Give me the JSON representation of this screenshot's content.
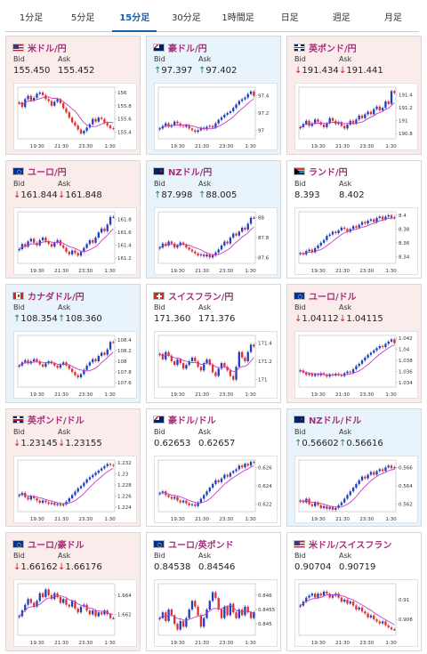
{
  "tabs": [
    "1分足",
    "5分足",
    "15分足",
    "30分足",
    "1時間足",
    "日足",
    "週足",
    "月足"
  ],
  "active_tab": "15分足",
  "labels": {
    "bid": "Bid",
    "ask": "Ask"
  },
  "x_ticks": [
    "19:30",
    "21:30",
    "23:30",
    "1:30"
  ],
  "colors": {
    "up_candle": "#1f3fbf",
    "down_candle": "#e03030",
    "ma_line": "#c43cc4",
    "tab_active": "#1a5ea8",
    "pair_text": "#a6307a"
  },
  "cards": [
    {
      "pair": "米ドル/円",
      "flag": "us-flag-icon",
      "dir": "dn",
      "bid_arrow": "",
      "ask_arrow": "",
      "bid": "155.450",
      "ask": "155.452",
      "chart_data": {
        "type": "candlestick",
        "y_ticks": [
          "156",
          "155.8",
          "155.6",
          "155.4"
        ],
        "ylim": [
          155.3,
          156.08
        ],
        "closes": [
          155.85,
          155.78,
          155.9,
          155.95,
          155.88,
          155.92,
          155.98,
          156.0,
          155.96,
          155.9,
          155.87,
          155.8,
          155.86,
          155.9,
          155.84,
          155.76,
          155.7,
          155.62,
          155.55,
          155.5,
          155.44,
          155.38,
          155.42,
          155.47,
          155.52,
          155.6,
          155.56,
          155.62,
          155.6,
          155.54,
          155.5,
          155.46,
          155.45
        ]
      }
    },
    {
      "pair": "豪ドル/円",
      "flag": "au-flag-icon",
      "dir": "up",
      "bid_arrow": "↑",
      "ask_arrow": "↑",
      "bid": "97.397",
      "ask": "97.402",
      "chart_data": {
        "type": "candlestick",
        "y_ticks": [
          "97.4",
          "97.2",
          "97"
        ],
        "ylim": [
          96.9,
          97.5
        ],
        "closes": [
          97.02,
          97.05,
          97.08,
          97.04,
          97.06,
          97.1,
          97.08,
          97.05,
          97.04,
          97.06,
          97.02,
          97.0,
          96.98,
          97.0,
          97.03,
          97.01,
          97.04,
          97.05,
          97.03,
          97.08,
          97.12,
          97.15,
          97.18,
          97.2,
          97.22,
          97.26,
          97.3,
          97.34,
          97.36,
          97.38,
          97.42,
          97.45,
          97.4
        ]
      }
    },
    {
      "pair": "英ポンド/円",
      "flag": "gb-flag-icon",
      "dir": "dn",
      "bid_arrow": "↓",
      "ask_arrow": "↓",
      "bid": "191.434",
      "ask": "191.441",
      "chart_data": {
        "type": "candlestick",
        "y_ticks": [
          "191.4",
          "191.2",
          "191",
          "190.8"
        ],
        "ylim": [
          190.72,
          191.52
        ],
        "closes": [
          190.9,
          190.95,
          191.0,
          190.92,
          190.96,
          191.02,
          190.98,
          190.94,
          190.9,
          190.96,
          191.04,
          191.0,
          190.95,
          190.98,
          190.92,
          190.88,
          190.94,
          191.0,
          190.96,
          191.02,
          191.08,
          191.04,
          191.1,
          191.14,
          191.1,
          191.18,
          191.22,
          191.16,
          191.2,
          191.3,
          191.26,
          191.46,
          191.43
        ]
      }
    },
    {
      "pair": "ユーロ/円",
      "flag": "eu-flag-icon",
      "dir": "dn",
      "bid_arrow": "↓",
      "ask_arrow": "↓",
      "bid": "161.844",
      "ask": "161.848",
      "chart_data": {
        "type": "candlestick",
        "y_ticks": [
          "161.8",
          "161.6",
          "161.4",
          "161.2"
        ],
        "ylim": [
          161.12,
          161.92
        ],
        "closes": [
          161.34,
          161.42,
          161.38,
          161.46,
          161.5,
          161.44,
          161.4,
          161.48,
          161.52,
          161.46,
          161.42,
          161.38,
          161.44,
          161.48,
          161.4,
          161.36,
          161.3,
          161.26,
          161.32,
          161.28,
          161.24,
          161.3,
          161.36,
          161.42,
          161.48,
          161.44,
          161.52,
          161.6,
          161.66,
          161.62,
          161.72,
          161.84,
          161.84
        ]
      }
    },
    {
      "pair": "NZドル/円",
      "flag": "nz-flag-icon",
      "dir": "up",
      "bid_arrow": "↑",
      "ask_arrow": "↑",
      "bid": "87.998",
      "ask": "88.005",
      "chart_data": {
        "type": "candlestick",
        "y_ticks": [
          "88",
          "87.8",
          "87.6"
        ],
        "ylim": [
          87.54,
          88.06
        ],
        "closes": [
          87.7,
          87.74,
          87.72,
          87.76,
          87.74,
          87.7,
          87.72,
          87.75,
          87.73,
          87.7,
          87.68,
          87.66,
          87.64,
          87.62,
          87.63,
          87.61,
          87.63,
          87.6,
          87.62,
          87.65,
          87.68,
          87.72,
          87.76,
          87.74,
          87.8,
          87.84,
          87.82,
          87.86,
          87.9,
          87.88,
          87.94,
          88.0,
          88.0
        ]
      }
    },
    {
      "pair": "ランド/円",
      "flag": "za-flag-icon",
      "dir": "nt",
      "bid_arrow": "",
      "ask_arrow": "",
      "bid": "8.393",
      "ask": "8.402",
      "chart_data": {
        "type": "candlestick",
        "y_ticks": [
          "8.4",
          "8.38",
          "8.36",
          "8.34"
        ],
        "ylim": [
          8.33,
          8.405
        ],
        "closes": [
          8.345,
          8.343,
          8.348,
          8.35,
          8.346,
          8.352,
          8.356,
          8.36,
          8.364,
          8.37,
          8.372,
          8.376,
          8.374,
          8.378,
          8.382,
          8.38,
          8.376,
          8.38,
          8.384,
          8.382,
          8.386,
          8.39,
          8.388,
          8.392,
          8.394,
          8.39,
          8.396,
          8.398,
          8.394,
          8.398,
          8.4,
          8.396,
          8.397
        ]
      }
    },
    {
      "pair": "カナダドル/円",
      "flag": "ca-flag-icon",
      "dir": "up",
      "bid_arrow": "↑",
      "ask_arrow": "↑",
      "bid": "108.354",
      "ask": "108.360",
      "chart_data": {
        "type": "candlestick",
        "y_ticks": [
          "108.4",
          "108.2",
          "108",
          "107.8",
          "107.6"
        ],
        "ylim": [
          107.52,
          108.48
        ],
        "closes": [
          107.92,
          107.98,
          108.02,
          107.96,
          108.0,
          108.04,
          108.0,
          107.94,
          107.9,
          107.96,
          108.0,
          107.96,
          107.92,
          107.88,
          107.94,
          107.98,
          107.92,
          107.86,
          107.8,
          107.74,
          107.7,
          107.76,
          107.84,
          107.92,
          107.98,
          108.04,
          108.0,
          108.1,
          108.16,
          108.12,
          108.22,
          108.36,
          108.35
        ]
      }
    },
    {
      "pair": "スイスフラン/円",
      "flag": "ch-flag-icon",
      "dir": "nt",
      "bid_arrow": "",
      "ask_arrow": "",
      "bid": "171.360",
      "ask": "171.376",
      "chart_data": {
        "type": "candlestick",
        "y_ticks": [
          "171.4",
          "171.2",
          "171"
        ],
        "ylim": [
          170.92,
          171.48
        ],
        "closes": [
          171.28,
          171.22,
          171.3,
          171.26,
          171.2,
          171.16,
          171.22,
          171.18,
          171.12,
          171.16,
          171.2,
          171.24,
          171.2,
          171.14,
          171.1,
          171.18,
          171.22,
          171.16,
          171.08,
          171.04,
          171.12,
          171.18,
          171.14,
          171.1,
          171.04,
          171.0,
          171.14,
          171.3,
          171.24,
          171.2,
          171.3,
          171.38,
          171.36
        ]
      }
    },
    {
      "pair": "ユーロ/ドル",
      "flag": "eu-us-flag-icon",
      "dir": "dn",
      "bid_arrow": "↓",
      "ask_arrow": "↓",
      "bid": "1.04112",
      "ask": "1.04115",
      "chart_data": {
        "type": "candlestick",
        "y_ticks": [
          "1.042",
          "1.04",
          "1.038",
          "1.036",
          "1.034"
        ],
        "ylim": [
          1.0332,
          1.0425
        ],
        "closes": [
          1.0362,
          1.0358,
          1.0354,
          1.0356,
          1.0352,
          1.0355,
          1.0353,
          1.0357,
          1.0354,
          1.0351,
          1.0355,
          1.0353,
          1.0356,
          1.0354,
          1.0352,
          1.0357,
          1.036,
          1.0358,
          1.0364,
          1.037,
          1.0374,
          1.038,
          1.0385,
          1.039,
          1.0394,
          1.0398,
          1.0402,
          1.0406,
          1.0404,
          1.041,
          1.0414,
          1.0418,
          1.0411
        ]
      }
    },
    {
      "pair": "英ポンド/ドル",
      "flag": "gb-us-flag-icon",
      "dir": "dn",
      "bid_arrow": "↓",
      "ask_arrow": "↓",
      "bid": "1.23145",
      "ask": "1.23155",
      "chart_data": {
        "type": "candlestick",
        "y_ticks": [
          "1.232",
          "1.23",
          "1.228",
          "1.226",
          "1.224"
        ],
        "ylim": [
          1.2232,
          1.2325
        ],
        "closes": [
          1.2262,
          1.2266,
          1.2258,
          1.2254,
          1.226,
          1.2256,
          1.2252,
          1.2248,
          1.2252,
          1.2249,
          1.2246,
          1.2248,
          1.2244,
          1.2246,
          1.2243,
          1.2245,
          1.225,
          1.2256,
          1.2262,
          1.2268,
          1.2274,
          1.2278,
          1.2284,
          1.229,
          1.2294,
          1.2298,
          1.2302,
          1.2306,
          1.231,
          1.2314,
          1.2318,
          1.2316,
          1.2315
        ]
      }
    },
    {
      "pair": "豪ドル/ドル",
      "flag": "au-us-flag-icon",
      "dir": "nt",
      "bid_arrow": "",
      "ask_arrow": "",
      "bid": "0.62653",
      "ask": "0.62657",
      "chart_data": {
        "type": "candlestick",
        "y_ticks": [
          "0.626",
          "0.624",
          "0.622"
        ],
        "ylim": [
          0.6212,
          0.6268
        ],
        "closes": [
          0.6232,
          0.6234,
          0.623,
          0.6228,
          0.6226,
          0.6228,
          0.6224,
          0.6222,
          0.6224,
          0.6221,
          0.6219,
          0.622,
          0.6218,
          0.6222,
          0.6226,
          0.623,
          0.6234,
          0.6238,
          0.6242,
          0.6246,
          0.6244,
          0.6248,
          0.6252,
          0.625,
          0.6254,
          0.6256,
          0.6258,
          0.6262,
          0.626,
          0.6264,
          0.6262,
          0.6266,
          0.6265
        ]
      }
    },
    {
      "pair": "NZドル/ドル",
      "flag": "nz-us-flag-icon",
      "dir": "up",
      "bid_arrow": "↑",
      "ask_arrow": "↑",
      "bid": "0.56602",
      "ask": "0.56616",
      "chart_data": {
        "type": "candlestick",
        "y_ticks": [
          "0.566",
          "0.564",
          "0.562"
        ],
        "ylim": [
          0.5612,
          0.5668
        ],
        "closes": [
          0.5624,
          0.5622,
          0.5626,
          0.562,
          0.5618,
          0.5622,
          0.5619,
          0.5616,
          0.5618,
          0.5615,
          0.5617,
          0.5614,
          0.5616,
          0.5619,
          0.5622,
          0.5626,
          0.563,
          0.5634,
          0.5638,
          0.5642,
          0.5646,
          0.565,
          0.5648,
          0.5652,
          0.5655,
          0.5652,
          0.5656,
          0.5658,
          0.5656,
          0.566,
          0.5662,
          0.5659,
          0.566
        ]
      }
    },
    {
      "pair": "ユーロ/豪ドル",
      "flag": "eu-au-flag-icon",
      "dir": "dn",
      "bid_arrow": "↓",
      "ask_arrow": "↓",
      "bid": "1.66162",
      "ask": "1.66176",
      "chart_data": {
        "type": "candlestick",
        "y_ticks": [
          "1.664",
          "1.662"
        ],
        "ylim": [
          1.6598,
          1.6652
        ],
        "closes": [
          1.6618,
          1.6624,
          1.663,
          1.6636,
          1.6632,
          1.6628,
          1.6634,
          1.6642,
          1.6638,
          1.6646,
          1.664,
          1.6636,
          1.6642,
          1.6638,
          1.6632,
          1.6636,
          1.663,
          1.6628,
          1.6634,
          1.6626,
          1.6622,
          1.6628,
          1.663,
          1.6624,
          1.662,
          1.6624,
          1.6618,
          1.6622,
          1.662,
          1.6624,
          1.662,
          1.6616,
          1.6616
        ]
      }
    },
    {
      "pair": "ユーロ/英ポンド",
      "flag": "eu-gb-flag-icon",
      "dir": "nt",
      "bid_arrow": "",
      "ask_arrow": "",
      "bid": "0.84538",
      "ask": "0.84546",
      "chart_data": {
        "type": "candlestick",
        "y_ticks": [
          "0.846",
          "0.8455",
          "0.845"
        ],
        "ylim": [
          0.8446,
          0.8464
        ],
        "closes": [
          0.8452,
          0.8454,
          0.8451,
          0.8455,
          0.8453,
          0.845,
          0.8448,
          0.8451,
          0.8449,
          0.8452,
          0.8455,
          0.8458,
          0.8456,
          0.8453,
          0.8449,
          0.8452,
          0.8455,
          0.8458,
          0.8461,
          0.8459,
          0.8455,
          0.8452,
          0.8456,
          0.8453,
          0.8457,
          0.8454,
          0.8452,
          0.8455,
          0.8453,
          0.8456,
          0.8454,
          0.8452,
          0.8454
        ]
      }
    },
    {
      "pair": "米ドル/スイスフラン",
      "flag": "us-ch-flag-icon",
      "dir": "nt",
      "bid_arrow": "",
      "ask_arrow": "",
      "bid": "0.90704",
      "ask": "0.90719",
      "chart_data": {
        "type": "candlestick",
        "y_ticks": [
          "0.91",
          "0.908"
        ],
        "ylim": [
          0.9064,
          0.9116
        ],
        "closes": [
          0.9094,
          0.9098,
          0.9102,
          0.9104,
          0.9106,
          0.9102,
          0.9106,
          0.9104,
          0.9108,
          0.9106,
          0.9102,
          0.9104,
          0.9106,
          0.9102,
          0.9098,
          0.91,
          0.9096,
          0.9098,
          0.9094,
          0.909,
          0.9092,
          0.9088,
          0.9086,
          0.9082,
          0.9084,
          0.908,
          0.9078,
          0.9076,
          0.9078,
          0.9074,
          0.9072,
          0.907,
          0.907
        ]
      }
    }
  ]
}
